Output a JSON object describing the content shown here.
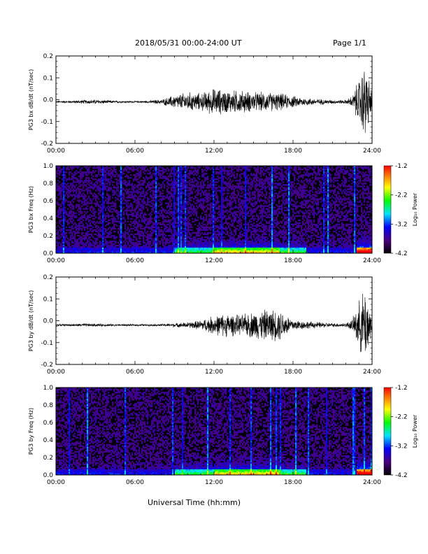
{
  "header": {
    "title": "2018/05/31  00:00-24:00 UT",
    "page": "Page 1/1"
  },
  "footer": {
    "xlabel": "Universal Time (hh:mm)"
  },
  "chart_data": [
    {
      "type": "line",
      "ylabel": "PG3 bx dB/dt (nT/sec)",
      "xlim": [
        0,
        24
      ],
      "ylim": [
        -0.2,
        0.2
      ],
      "xticks": [
        "00:00",
        "06:00",
        "12:00",
        "18:00",
        "24:00"
      ],
      "yticks": [
        "0.2",
        "0.1",
        "0.0",
        "-0.1",
        "-0.2"
      ],
      "baseline": -0.01,
      "envelope": {
        "t_hours": [
          0,
          1,
          2,
          3,
          4,
          5,
          6,
          7,
          8,
          9,
          10,
          11,
          12,
          13,
          14,
          15,
          16,
          17,
          18,
          19,
          20,
          21,
          22,
          22.5,
          23,
          23.5,
          24
        ],
        "max_dev": [
          0.005,
          0.006,
          0.01,
          0.012,
          0.008,
          0.005,
          0.005,
          0.006,
          0.012,
          0.035,
          0.05,
          0.045,
          0.07,
          0.06,
          0.06,
          0.05,
          0.05,
          0.045,
          0.03,
          0.02,
          0.015,
          0.01,
          0.01,
          0.03,
          0.12,
          0.2,
          0.05
        ]
      }
    },
    {
      "type": "heatmap",
      "ylabel": "PG3 bx Freq (Hz)",
      "xlim": [
        0,
        24
      ],
      "ylim": [
        0,
        1.0
      ],
      "xticks": [
        "00:00",
        "06:00",
        "12:00",
        "18:00",
        "24:00"
      ],
      "yticks": [
        "1.0",
        "0.8",
        "0.6",
        "0.4",
        "0.2",
        "0.0"
      ],
      "colorbar": {
        "label": "Log₁₀ Power",
        "range": [
          -4.2,
          -1.2
        ],
        "ticks": [
          "-1.2",
          "-2.2",
          "-3.2",
          "-4.2"
        ]
      }
    },
    {
      "type": "line",
      "ylabel": "PG3 by dB/dt (nT/sec)",
      "xlim": [
        0,
        24
      ],
      "ylim": [
        -0.2,
        0.2
      ],
      "xticks": [
        "00:00",
        "06:00",
        "12:00",
        "18:00",
        "24:00"
      ],
      "yticks": [
        "0.2",
        "0.1",
        "0.0",
        "-0.1",
        "-0.2"
      ],
      "baseline": -0.02,
      "envelope": {
        "t_hours": [
          0,
          1,
          2,
          3,
          4,
          5,
          6,
          7,
          8,
          9,
          10,
          11,
          12,
          13,
          14,
          15,
          16,
          17,
          18,
          19,
          20,
          21,
          22,
          22.5,
          23,
          23.5,
          24
        ],
        "max_dev": [
          0.005,
          0.005,
          0.008,
          0.008,
          0.006,
          0.005,
          0.005,
          0.005,
          0.006,
          0.01,
          0.015,
          0.025,
          0.05,
          0.06,
          0.05,
          0.07,
          0.08,
          0.08,
          0.03,
          0.02,
          0.015,
          0.01,
          0.01,
          0.03,
          0.12,
          0.2,
          0.05
        ]
      }
    },
    {
      "type": "heatmap",
      "ylabel": "PG3 by Freq (Hz)",
      "xlim": [
        0,
        24
      ],
      "ylim": [
        0,
        1.0
      ],
      "xticks": [
        "00:00",
        "06:00",
        "12:00",
        "18:00",
        "24:00"
      ],
      "yticks": [
        "1.0",
        "0.8",
        "0.6",
        "0.4",
        "0.2",
        "0.0"
      ],
      "colorbar": {
        "label": "Log₁₀ Power",
        "range": [
          -4.2,
          -1.2
        ],
        "ticks": [
          "-1.2",
          "-2.2",
          "-3.2",
          "-4.2"
        ]
      }
    }
  ]
}
